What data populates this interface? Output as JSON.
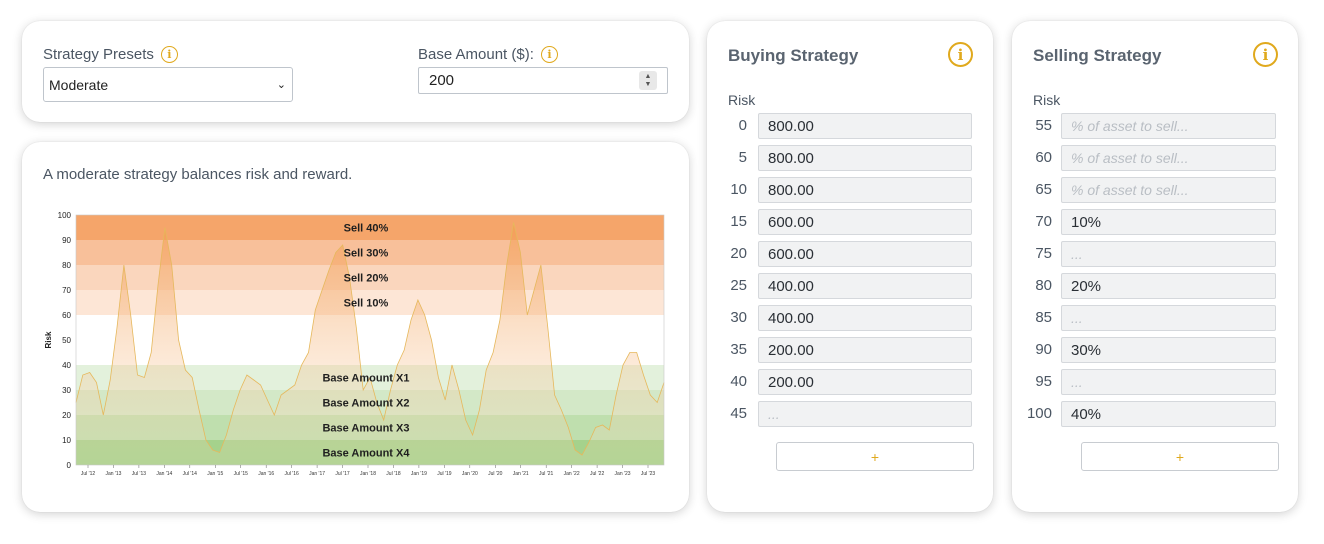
{
  "presets": {
    "label": "Strategy Presets",
    "selected": "Moderate",
    "base_amount_label": "Base Amount ($):",
    "base_amount_value": "200",
    "info_icon": "info-icon"
  },
  "chart_card": {
    "description": "A moderate strategy balances risk and reward."
  },
  "chart_data": {
    "type": "area",
    "ylabel": "Risk",
    "ylim": [
      0,
      100
    ],
    "y_ticks": [
      "0",
      "10",
      "20",
      "30",
      "40",
      "50",
      "60",
      "70",
      "80",
      "90",
      "100"
    ],
    "x_ticks": [
      "Jul '12",
      "Jan '13",
      "Jul '13",
      "Jan '14",
      "Jul '14",
      "Jan '15",
      "Jul '15",
      "Jan '16",
      "Jul '16",
      "Jan '17",
      "Jul '17",
      "Jan '18",
      "Jul '18",
      "Jan '19",
      "Jul '19",
      "Jan '20",
      "Jul '20",
      "Jan '21",
      "Jul '21",
      "Jan '22",
      "Jul '22",
      "Jan '23",
      "Jul '23"
    ],
    "bands": [
      {
        "label": "Sell 40%",
        "from": 90,
        "to": 100,
        "color": "#f5a56a"
      },
      {
        "label": "Sell 30%",
        "from": 80,
        "to": 90,
        "color": "#f8c09a"
      },
      {
        "label": "Sell 20%",
        "from": 70,
        "to": 80,
        "color": "#fad6bd"
      },
      {
        "label": "Sell 10%",
        "from": 60,
        "to": 70,
        "color": "#fde6d6"
      },
      {
        "label": "Base Amount X1",
        "from": 30,
        "to": 40,
        "color": "#e3f1dc"
      },
      {
        "label": "Base Amount X2",
        "from": 20,
        "to": 30,
        "color": "#d3e8c7"
      },
      {
        "label": "Base Amount X3",
        "from": 10,
        "to": 20,
        "color": "#bfdfae"
      },
      {
        "label": "Base Amount X4",
        "from": 0,
        "to": 10,
        "color": "#a5d28c"
      }
    ],
    "series": [
      {
        "values": [
          25,
          36,
          37,
          33,
          20,
          34,
          55,
          80,
          60,
          36,
          35,
          45,
          72,
          95,
          80,
          50,
          38,
          35,
          22,
          10,
          6,
          5,
          12,
          22,
          30,
          36,
          34,
          32,
          26,
          20,
          28,
          30,
          32,
          40,
          45,
          62,
          70,
          78,
          85,
          88,
          75,
          55,
          30,
          35,
          25,
          18,
          30,
          40,
          46,
          58,
          66,
          60,
          50,
          35,
          26,
          40,
          30,
          18,
          12,
          22,
          38,
          45,
          58,
          80,
          97,
          85,
          60,
          70,
          80,
          55,
          28,
          22,
          15,
          6,
          4,
          9,
          15,
          16,
          14,
          28,
          40,
          45,
          45,
          36,
          28,
          25,
          33
        ]
      }
    ]
  },
  "buying": {
    "title": "Buying Strategy",
    "risk_header": "Risk",
    "info_icon": "info-icon",
    "rows": [
      {
        "risk": "0",
        "value": "800.00"
      },
      {
        "risk": "5",
        "value": "800.00"
      },
      {
        "risk": "10",
        "value": "800.00"
      },
      {
        "risk": "15",
        "value": "600.00"
      },
      {
        "risk": "20",
        "value": "600.00"
      },
      {
        "risk": "25",
        "value": "400.00"
      },
      {
        "risk": "30",
        "value": "400.00"
      },
      {
        "risk": "35",
        "value": "200.00"
      },
      {
        "risk": "40",
        "value": "200.00"
      },
      {
        "risk": "45",
        "value": "",
        "placeholder": "..."
      }
    ],
    "add_label": "+"
  },
  "selling": {
    "title": "Selling Strategy",
    "risk_header": "Risk",
    "info_icon": "info-icon",
    "rows": [
      {
        "risk": "55",
        "value": "",
        "placeholder": "% of asset to sell..."
      },
      {
        "risk": "60",
        "value": "",
        "placeholder": "% of asset to sell..."
      },
      {
        "risk": "65",
        "value": "",
        "placeholder": "% of asset to sell..."
      },
      {
        "risk": "70",
        "value": "10%"
      },
      {
        "risk": "75",
        "value": "",
        "placeholder": "..."
      },
      {
        "risk": "80",
        "value": "20%"
      },
      {
        "risk": "85",
        "value": "",
        "placeholder": "..."
      },
      {
        "risk": "90",
        "value": "30%"
      },
      {
        "risk": "95",
        "value": "",
        "placeholder": "..."
      },
      {
        "risk": "100",
        "value": "40%"
      }
    ],
    "add_label": "+"
  }
}
